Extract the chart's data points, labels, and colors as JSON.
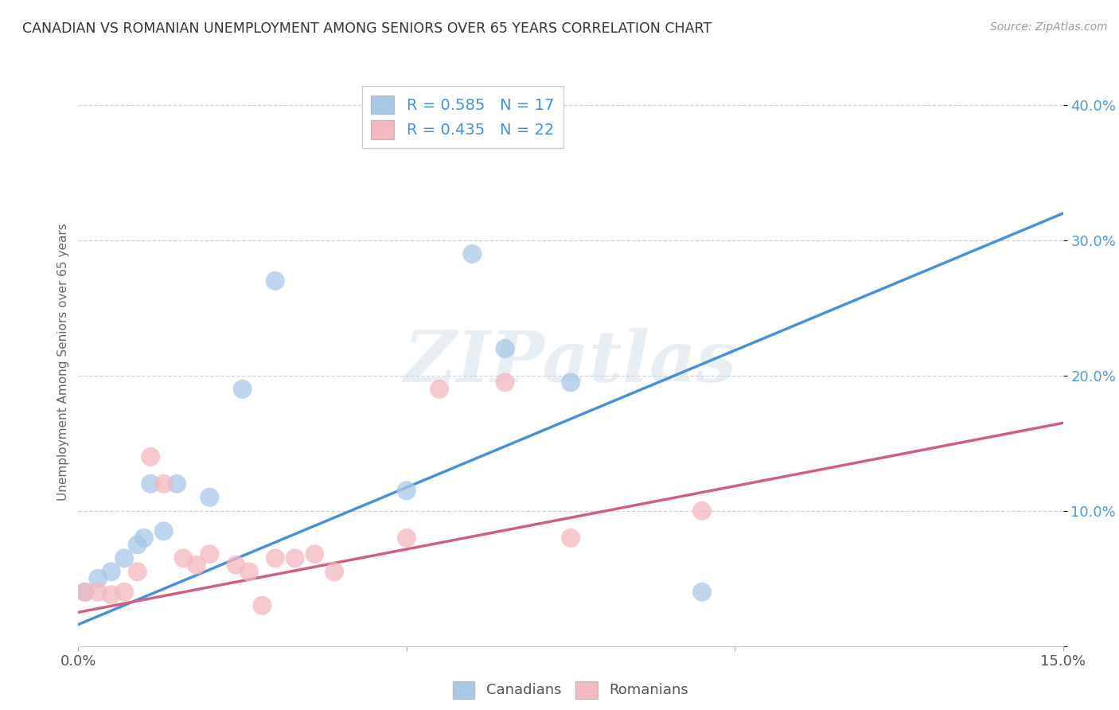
{
  "title": "CANADIAN VS ROMANIAN UNEMPLOYMENT AMONG SENIORS OVER 65 YEARS CORRELATION CHART",
  "source": "Source: ZipAtlas.com",
  "ylabel": "Unemployment Among Seniors over 65 years",
  "xlim": [
    0.0,
    0.15
  ],
  "ylim": [
    0.0,
    0.42
  ],
  "xticks": [
    0.0,
    0.05,
    0.1,
    0.15
  ],
  "xticklabels": [
    "0.0%",
    "",
    "",
    "15.0%"
  ],
  "yticks": [
    0.0,
    0.1,
    0.2,
    0.3,
    0.4
  ],
  "yticklabels": [
    "",
    "10.0%",
    "20.0%",
    "30.0%",
    "40.0%"
  ],
  "canadian_color": "#a8c8e8",
  "romanian_color": "#f4b8c0",
  "canadian_line_color": "#4a90d9",
  "romanian_line_color": "#d06080",
  "canadian_r": 0.585,
  "canadian_n": 17,
  "romanian_r": 0.435,
  "romanian_n": 22,
  "watermark": "ZIPatlas",
  "canadian_x": [
    0.001,
    0.003,
    0.005,
    0.007,
    0.009,
    0.01,
    0.011,
    0.013,
    0.015,
    0.02,
    0.025,
    0.03,
    0.05,
    0.06,
    0.065,
    0.075,
    0.095
  ],
  "canadian_y": [
    0.04,
    0.05,
    0.055,
    0.065,
    0.075,
    0.08,
    0.12,
    0.085,
    0.12,
    0.11,
    0.19,
    0.27,
    0.115,
    0.29,
    0.22,
    0.195,
    0.04
  ],
  "romanian_x": [
    0.001,
    0.003,
    0.005,
    0.007,
    0.009,
    0.011,
    0.013,
    0.016,
    0.018,
    0.02,
    0.024,
    0.026,
    0.028,
    0.03,
    0.033,
    0.036,
    0.039,
    0.05,
    0.055,
    0.065,
    0.075,
    0.095
  ],
  "romanian_y": [
    0.04,
    0.04,
    0.038,
    0.04,
    0.055,
    0.14,
    0.12,
    0.065,
    0.06,
    0.068,
    0.06,
    0.055,
    0.03,
    0.065,
    0.065,
    0.068,
    0.055,
    0.08,
    0.19,
    0.195,
    0.08,
    0.1
  ],
  "can_trend": [
    0.0,
    0.15
  ],
  "can_trend_y": [
    0.016,
    0.32
  ],
  "rom_trend": [
    0.0,
    0.15
  ],
  "rom_trend_y": [
    0.025,
    0.165
  ]
}
